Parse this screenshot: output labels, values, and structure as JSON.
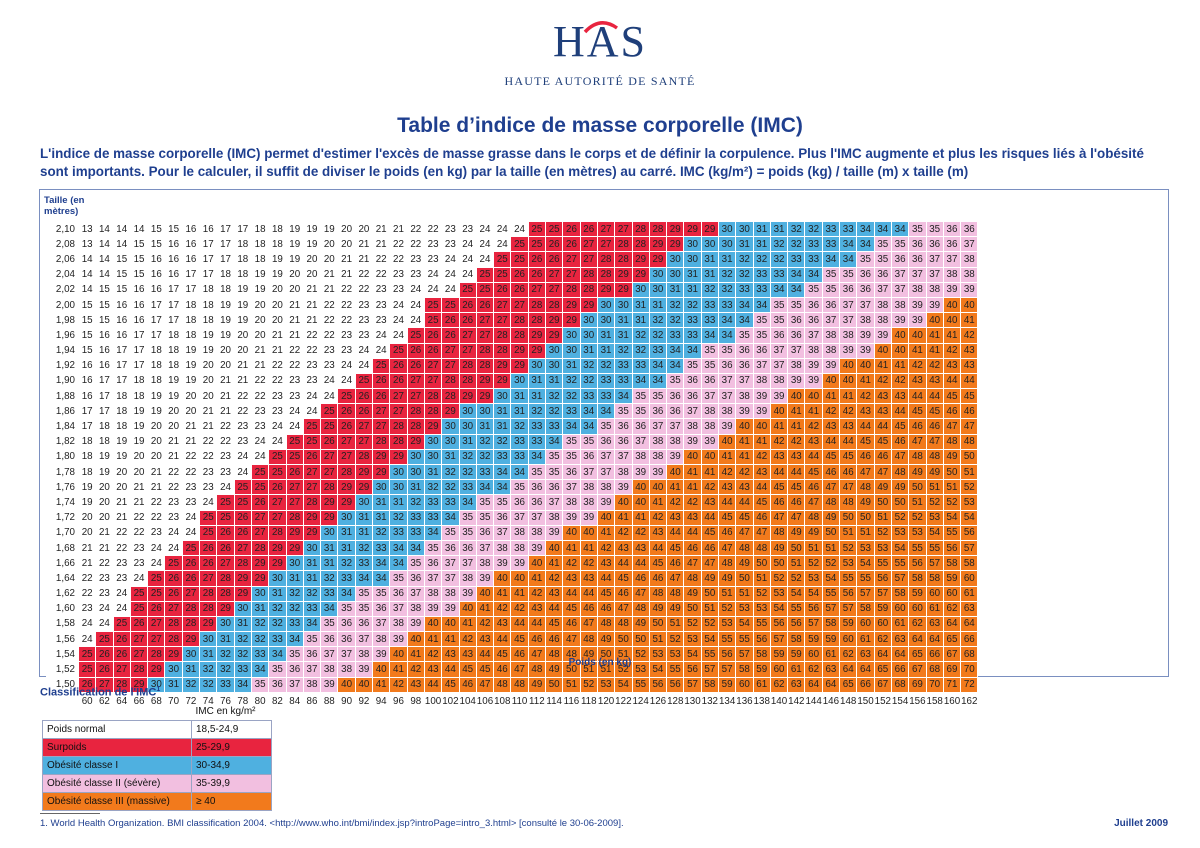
{
  "logo": {
    "mark": "HAS",
    "subtitle": "HAUTE AUTORITÉ DE SANTÉ"
  },
  "title": "Table d’indice de masse corporelle (IMC)",
  "intro": "L'indice de masse corporelle (IMC) permet d'estimer l'excès de masse grasse dans le corps et de définir la corpulence. Plus l'IMC augmente et plus les risques liés à l'obésité sont importants. Pour le calculer, il suffit de diviser le poids (en kg) par la taille (en mètres) au carré. IMC (kg/m²) = poids (kg) / taille (m) x taille (m)",
  "chart_data": {
    "type": "heatmap",
    "ylabel": "Taille (en mètres)",
    "xlabel": "Poids (en kg)",
    "heights": [
      "2,10",
      "2,08",
      "2,06",
      "2,04",
      "2,02",
      "2,00",
      "1,98",
      "1,96",
      "1,94",
      "1,92",
      "1,90",
      "1,88",
      "1,86",
      "1,84",
      "1,82",
      "1,80",
      "1,78",
      "1,76",
      "1,74",
      "1,72",
      "1,70",
      "1,68",
      "1,66",
      "1,64",
      "1,62",
      "1,60",
      "1,58",
      "1,56",
      "1,54",
      "1,52",
      "1,50"
    ],
    "weights": [
      60,
      62,
      64,
      66,
      68,
      70,
      72,
      74,
      76,
      78,
      80,
      82,
      84,
      86,
      88,
      90,
      92,
      94,
      96,
      98,
      100,
      102,
      104,
      106,
      108,
      110,
      112,
      114,
      116,
      118,
      120,
      122,
      124,
      126,
      128,
      130,
      132,
      134,
      136,
      138,
      140,
      142,
      144,
      146,
      148,
      150,
      152,
      154,
      156,
      158,
      160,
      162
    ],
    "value_rule": "IMC = poids / taille²",
    "bands": [
      {
        "min": 0,
        "max": 24,
        "color": "#ffffff"
      },
      {
        "min": 25,
        "max": 29,
        "color": "#e8243f"
      },
      {
        "min": 30,
        "max": 34,
        "color": "#4fb0e0"
      },
      {
        "min": 35,
        "max": 39,
        "color": "#f2bfe0"
      },
      {
        "min": 40,
        "max": 999,
        "color": "#f27a1c"
      }
    ]
  },
  "classification": {
    "title": "Classification de l'IMC",
    "footnote_mark": "1",
    "column_header": "IMC en kg/m²",
    "rows": [
      {
        "label": "Poids normal",
        "range": "18,5-24,9",
        "color": "#ffffff"
      },
      {
        "label": "Surpoids",
        "range": "25-29,9",
        "color": "#e8243f"
      },
      {
        "label": "Obésité classe I",
        "range": "30-34,9",
        "color": "#4fb0e0"
      },
      {
        "label": "Obésité classe II (sévère)",
        "range": "35-39,9",
        "color": "#f2bfe0"
      },
      {
        "label": "Obésité classe III (massive)",
        "range": "≥ 40",
        "color": "#f27a1c"
      }
    ]
  },
  "footnote": "1. World Health Organization. BMI classification 2004. <http://www.who.int/bmi/index.jsp?introPage=intro_3.html> [consulté le 30-06-2009].",
  "date": "Juillet 2009",
  "colors": {
    "title_blue": "#1f3f8f"
  }
}
